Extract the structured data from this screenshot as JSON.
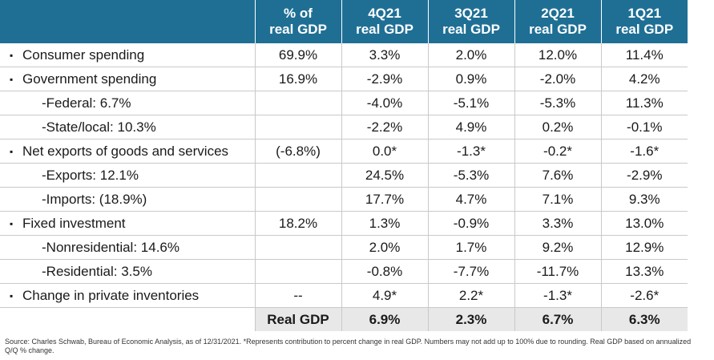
{
  "chart_data": {
    "type": "table",
    "columns": [
      "",
      "% of\nreal GDP",
      "4Q21\nreal GDP",
      "3Q21\nreal GDP",
      "2Q21\nreal GDP",
      "1Q21\nreal GDP"
    ],
    "rows": [
      {
        "label": "Consumer spending",
        "level": 0,
        "cells": [
          "69.9%",
          "3.3%",
          "2.0%",
          "12.0%",
          "11.4%"
        ]
      },
      {
        "label": "Government spending",
        "level": 0,
        "cells": [
          "16.9%",
          "-2.9%",
          "0.9%",
          "-2.0%",
          "4.2%"
        ]
      },
      {
        "label": "-Federal: 6.7%",
        "level": 1,
        "cells": [
          "",
          "-4.0%",
          "-5.1%",
          "-5.3%",
          "11.3%"
        ]
      },
      {
        "label": "-State/local: 10.3%",
        "level": 1,
        "cells": [
          "",
          "-2.2%",
          "4.9%",
          "0.2%",
          "-0.1%"
        ]
      },
      {
        "label": "Net exports of goods and services",
        "level": 0,
        "cells": [
          "(-6.8%)",
          "0.0*",
          "-1.3*",
          "-0.2*",
          "-1.6*"
        ]
      },
      {
        "label": "-Exports: 12.1%",
        "level": 1,
        "cells": [
          "",
          "24.5%",
          "-5.3%",
          "7.6%",
          "-2.9%"
        ]
      },
      {
        "label": "-Imports: (18.9%)",
        "level": 1,
        "cells": [
          "",
          "17.7%",
          "4.7%",
          "7.1%",
          "9.3%"
        ]
      },
      {
        "label": "Fixed investment",
        "level": 0,
        "cells": [
          "18.2%",
          "1.3%",
          "-0.9%",
          "3.3%",
          "13.0%"
        ]
      },
      {
        "label": "-Nonresidential: 14.6%",
        "level": 1,
        "cells": [
          "",
          "2.0%",
          "1.7%",
          "9.2%",
          "12.9%"
        ]
      },
      {
        "label": "-Residential: 3.5%",
        "level": 1,
        "cells": [
          "",
          "-0.8%",
          "-7.7%",
          "-11.7%",
          "13.3%"
        ]
      },
      {
        "label": "Change in private inventories",
        "level": 0,
        "cells": [
          "--",
          "4.9*",
          "2.2*",
          "-1.3*",
          "-2.6*"
        ]
      }
    ],
    "total": {
      "label": "Real GDP",
      "cells": [
        "6.9%",
        "2.3%",
        "6.7%",
        "6.3%"
      ]
    },
    "colors": {
      "header_bg": "#1f6f95",
      "header_text": "#ffffff",
      "total_bg": "#e8e8e8",
      "grid": "#c9c9c9"
    }
  },
  "bullet_glyph": "▪",
  "source_note": "Source: Charles Schwab, Bureau of Economic Analysis, as of 12/31/2021. *Represents contribution to percent change in real GDP. Numbers may not add up to 100% due to rounding. Real GDP based on annualized Q/Q % change."
}
